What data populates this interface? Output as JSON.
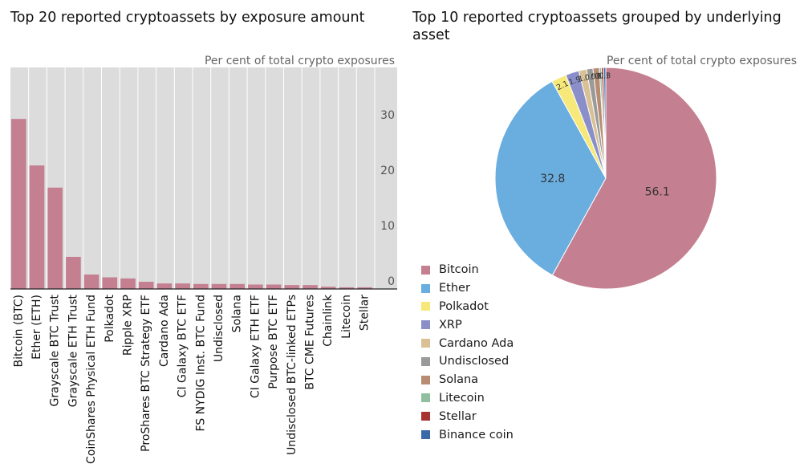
{
  "colors": {
    "bar": "#c47f90",
    "plot_bg": "#dcdcdc",
    "grid": "#ffffff"
  },
  "chart_data": [
    {
      "type": "bar",
      "title": "Top 20 reported cryptoassets by exposure amount",
      "unit_label": "Per cent of total crypto exposures",
      "categories": [
        "Bitcoin (BTC)",
        "Ether (ETH)",
        "Grayscale BTC Trust",
        "Grayscale ETH Trust",
        "CoinShares Physical ETH Fund",
        "Polkadot",
        "Ripple XRP",
        "ProShares BTC Strategy ETF",
        "Cardano Ada",
        "CI Galaxy BTC ETF",
        "FS NYDIG Inst. BTC Fund",
        "Undisclosed",
        "Solana",
        "CI Galaxy ETH ETF",
        "Purpose BTC ETF",
        "Undisclosed BTC-linked ETPs",
        "BTC CME Futures",
        "Chainlink",
        "Litecoin",
        "Stellar"
      ],
      "values": [
        30.7,
        22.3,
        18.3,
        5.8,
        2.6,
        2.1,
        1.9,
        1.3,
        1.0,
        1.0,
        0.9,
        0.9,
        0.9,
        0.8,
        0.8,
        0.7,
        0.7,
        0.4,
        0.3,
        0.3
      ],
      "yticks": [
        "0",
        "10",
        "20",
        "30"
      ],
      "ylim": [
        0,
        40
      ]
    },
    {
      "type": "pie",
      "title": "Top 10 reported cryptoassets grouped by underlying asset",
      "unit_label": "Per cent of total crypto exposures",
      "slices": [
        {
          "name": "Bitcoin",
          "value": 56.1,
          "color": "#c47f90",
          "label": "56.1"
        },
        {
          "name": "Ether",
          "value": 32.8,
          "color": "#6aaee0",
          "label": "32.8"
        },
        {
          "name": "Polkadot",
          "value": 2.1,
          "color": "#f6e97a",
          "label": "2.1"
        },
        {
          "name": "XRP",
          "value": 1.9,
          "color": "#8a8fc9",
          "label": "1.9"
        },
        {
          "name": "Cardano Ada",
          "value": 1.1,
          "color": "#d9c095",
          "label": "1.1"
        },
        {
          "name": "Undisclosed",
          "value": 0.9,
          "color": "#9a9a9a",
          "label": "0.9"
        },
        {
          "name": "Solana",
          "value": 0.9,
          "color": "#b88c72",
          "label": "0.9"
        },
        {
          "name": "Litecoin",
          "value": 0.3,
          "color": "#8fbf9f",
          "label": "0.3"
        },
        {
          "name": "Stellar",
          "value": 0.3,
          "color": "#a83232",
          "label": "0.3"
        },
        {
          "name": "Binance coin",
          "value": 0.3,
          "color": "#3c6aa8",
          "label": "0.3"
        }
      ]
    }
  ]
}
